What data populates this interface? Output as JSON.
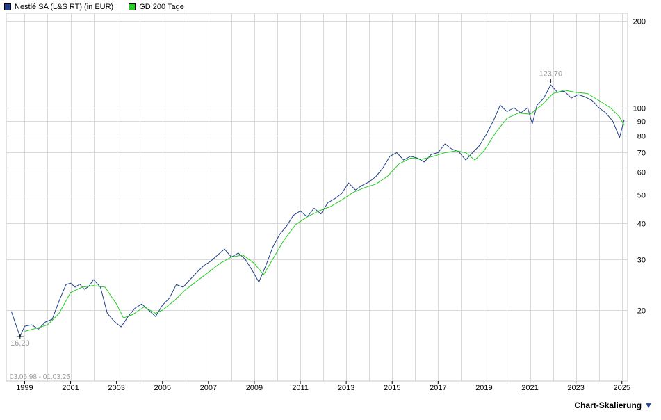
{
  "legend": {
    "series1_label": "Nestlé SA (L&S RT) (in EUR)",
    "series1_color": "#1f3e8a",
    "series2_label": "GD 200 Tage",
    "series2_color": "#22cc22"
  },
  "scale_button": {
    "label": "Chart-Skalierung",
    "icon": "triangle-down-icon"
  },
  "chart_data": {
    "type": "line",
    "yscale": "log",
    "ylim": [
      15,
      210
    ],
    "xlim": [
      1998.2,
      2025.25
    ],
    "grid": true,
    "yticks": [
      20,
      30,
      40,
      50,
      60,
      70,
      80,
      90,
      100,
      200
    ],
    "xticks": [
      1999,
      2001,
      2003,
      2005,
      2007,
      2009,
      2011,
      2013,
      2015,
      2017,
      2019,
      2021,
      2023,
      2025
    ],
    "date_range_label": "03.06.98 - 01.03.25",
    "annotations": [
      {
        "label": "16,20",
        "x": 1998.8,
        "y": 16.2,
        "position": "below"
      },
      {
        "label": "123,70",
        "x": 2021.9,
        "y": 123.7,
        "position": "above"
      }
    ],
    "series": [
      {
        "name": "Nestlé SA (L&S RT) (in EUR)",
        "color": "#1f3e8a",
        "x": [
          1998.42,
          1998.6,
          1998.8,
          1999.0,
          1999.3,
          1999.6,
          1999.9,
          2000.2,
          2000.5,
          2000.8,
          2001.0,
          2001.2,
          2001.4,
          2001.6,
          2001.8,
          2002.0,
          2002.3,
          2002.6,
          2002.9,
          2003.2,
          2003.5,
          2003.8,
          2004.1,
          2004.4,
          2004.7,
          2005.0,
          2005.3,
          2005.6,
          2005.9,
          2006.2,
          2006.5,
          2006.8,
          2007.1,
          2007.4,
          2007.7,
          2008.0,
          2008.3,
          2008.6,
          2008.9,
          2009.2,
          2009.5,
          2009.8,
          2010.1,
          2010.4,
          2010.7,
          2011.0,
          2011.3,
          2011.6,
          2011.9,
          2012.2,
          2012.5,
          2012.8,
          2013.1,
          2013.4,
          2013.7,
          2014.0,
          2014.3,
          2014.6,
          2014.9,
          2015.2,
          2015.5,
          2015.8,
          2016.1,
          2016.4,
          2016.7,
          2017.0,
          2017.3,
          2017.6,
          2017.9,
          2018.2,
          2018.5,
          2018.8,
          2019.1,
          2019.4,
          2019.7,
          2020.0,
          2020.3,
          2020.6,
          2020.9,
          2021.1,
          2021.3,
          2021.6,
          2021.9,
          2022.2,
          2022.5,
          2022.8,
          2023.1,
          2023.4,
          2023.7,
          2024.0,
          2024.3,
          2024.6,
          2024.9,
          2025.1
        ],
        "values": [
          19.8,
          18.0,
          16.2,
          17.6,
          17.8,
          17.2,
          18.2,
          18.6,
          21.5,
          24.5,
          24.8,
          24.0,
          24.6,
          23.6,
          24.2,
          25.5,
          24.0,
          19.5,
          18.3,
          17.5,
          19.0,
          20.3,
          21.0,
          20.0,
          19.0,
          20.8,
          22.0,
          24.5,
          24.0,
          25.5,
          27.0,
          28.5,
          29.5,
          31.0,
          32.5,
          30.5,
          31.5,
          30.0,
          27.5,
          25.0,
          28.5,
          33.0,
          36.5,
          39.0,
          42.5,
          44.0,
          42.0,
          45.0,
          43.0,
          47.0,
          48.5,
          50.5,
          55.0,
          52.0,
          54.0,
          55.5,
          58.0,
          62.0,
          68.0,
          70.0,
          66.0,
          68.0,
          67.0,
          65.0,
          69.0,
          70.0,
          75.0,
          72.0,
          70.5,
          66.0,
          70.0,
          74.0,
          81.0,
          90.0,
          102.0,
          97.0,
          100.0,
          96.0,
          100.0,
          88.0,
          102.0,
          108.0,
          120.0,
          113.0,
          114.0,
          108.0,
          111.0,
          109.0,
          106.0,
          100.0,
          96.0,
          90.0,
          79.0,
          91.0
        ]
      },
      {
        "name": "GD 200 Tage",
        "color": "#22cc22",
        "x": [
          1999.0,
          1999.5,
          2000.0,
          2000.5,
          2001.0,
          2001.5,
          2002.0,
          2002.5,
          2003.0,
          2003.3,
          2003.7,
          2004.2,
          2004.7,
          2005.0,
          2005.5,
          2006.0,
          2006.5,
          2007.0,
          2007.5,
          2008.0,
          2008.5,
          2009.0,
          2009.4,
          2009.8,
          2010.3,
          2010.8,
          2011.3,
          2011.8,
          2012.3,
          2012.8,
          2013.3,
          2013.8,
          2014.3,
          2014.8,
          2015.3,
          2015.8,
          2016.3,
          2016.8,
          2017.3,
          2017.8,
          2018.2,
          2018.6,
          2019.0,
          2019.5,
          2020.0,
          2020.5,
          2021.0,
          2021.5,
          2022.0,
          2022.5,
          2023.0,
          2023.5,
          2024.0,
          2024.5,
          2024.9,
          2025.1
        ],
        "values": [
          16.9,
          17.3,
          17.8,
          19.5,
          23.0,
          24.0,
          24.3,
          24.0,
          21.0,
          18.8,
          19.3,
          20.5,
          19.5,
          20.0,
          21.5,
          23.5,
          25.2,
          27.0,
          29.0,
          30.5,
          31.0,
          29.0,
          26.5,
          30.0,
          35.0,
          39.5,
          42.0,
          44.0,
          45.5,
          48.0,
          51.0,
          53.0,
          54.5,
          58.0,
          64.0,
          67.0,
          66.5,
          68.0,
          70.0,
          71.0,
          70.0,
          66.0,
          71.0,
          82.0,
          92.0,
          96.0,
          95.0,
          102.0,
          112.0,
          115.0,
          113.0,
          112.0,
          106.0,
          100.0,
          93.0,
          87.0
        ]
      }
    ]
  }
}
